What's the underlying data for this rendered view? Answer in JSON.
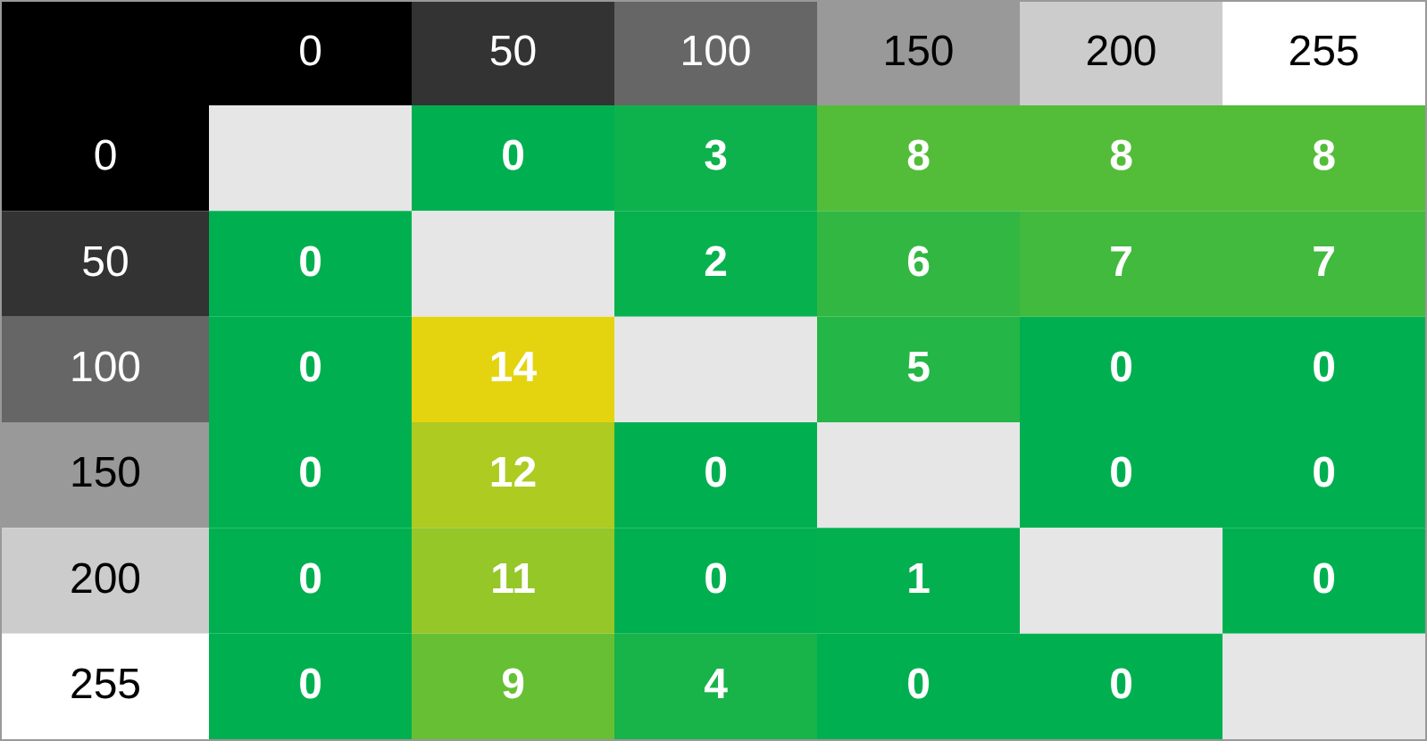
{
  "chart_data": {
    "type": "heatmap",
    "categories": [
      "0",
      "50",
      "100",
      "150",
      "200",
      "255"
    ],
    "y_categories": [
      "0",
      "50",
      "100",
      "150",
      "200",
      "255"
    ],
    "cells": [
      [
        null,
        0,
        3,
        8,
        8,
        8
      ],
      [
        0,
        null,
        2,
        6,
        7,
        7
      ],
      [
        0,
        14,
        null,
        5,
        0,
        0
      ],
      [
        0,
        12,
        0,
        null,
        0,
        0
      ],
      [
        0,
        11,
        0,
        1,
        null,
        0
      ],
      [
        0,
        9,
        4,
        0,
        0,
        null
      ]
    ],
    "data_labels": true
  }
}
